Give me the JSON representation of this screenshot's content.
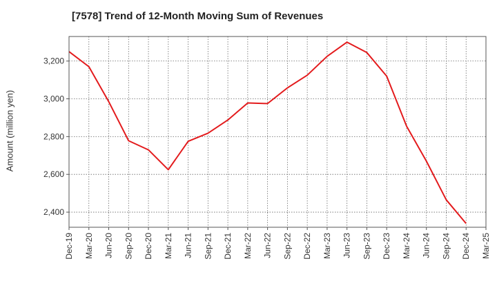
{
  "chart_data": {
    "type": "line",
    "title": "[7578]  Trend of 12-Month Moving Sum of Revenues",
    "xlabel": "",
    "ylabel": "Amount (million yen)",
    "categories": [
      "Dec-19",
      "Mar-20",
      "Jun-20",
      "Sep-20",
      "Dec-20",
      "Mar-21",
      "Jun-21",
      "Sep-21",
      "Dec-21",
      "Mar-22",
      "Jun-22",
      "Sep-22",
      "Dec-22",
      "Mar-23",
      "Jun-23",
      "Sep-23",
      "Dec-23",
      "Mar-24",
      "Jun-24",
      "Sep-24",
      "Dec-24",
      "Mar-25"
    ],
    "series": [
      {
        "color": "#e31a1c",
        "values": [
          3250,
          3170,
          2985,
          2778,
          2730,
          2625,
          2775,
          2818,
          2888,
          2978,
          2975,
          3058,
          3125,
          3225,
          3300,
          3245,
          3120,
          2855,
          2670,
          2465,
          2340,
          null
        ]
      }
    ],
    "yticks": [
      2400,
      2600,
      2800,
      3000,
      3200
    ],
    "ytick_labels": [
      "2,400",
      "2,600",
      "2,800",
      "3,000",
      "3,200"
    ],
    "ylim": [
      2320,
      3330
    ],
    "grid": true,
    "grid_style": "dotted"
  }
}
